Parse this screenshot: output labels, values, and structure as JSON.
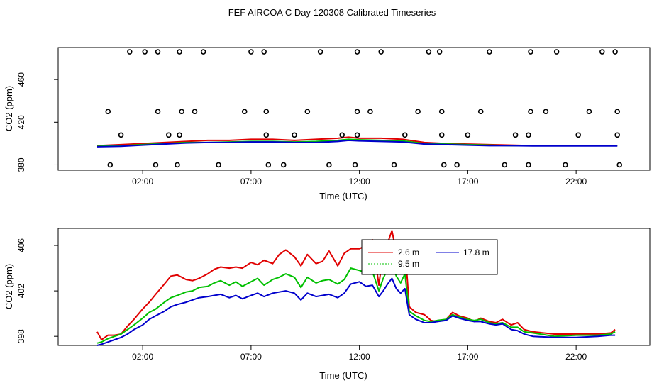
{
  "page": {
    "title": "FEF AIRCOA C  Day 120308  Calibrated Timeseries"
  },
  "colors": {
    "red": "#e00000",
    "green": "#00c000",
    "blue": "#0000cc",
    "axis": "#000000"
  },
  "chart_data": [
    {
      "type": "line+scatter",
      "xlabel": "Time (UTC)",
      "ylabel": "CO2 (ppm)",
      "xlim": [
        -1.9,
        25.4
      ],
      "ylim": [
        375,
        490
      ],
      "xticks": [
        2,
        7,
        12,
        17,
        22
      ],
      "xtick_labels": [
        "02:00",
        "07:00",
        "12:00",
        "17:00",
        "22:00"
      ],
      "yticks": [
        380,
        420,
        460
      ],
      "ytick_labels": [
        "380",
        "420",
        "460"
      ],
      "series": [
        {
          "name": "2.6 m",
          "color": "red",
          "x": [
            -0.1,
            1,
            2,
            3,
            4,
            5,
            6,
            7,
            8,
            9,
            10,
            11,
            11.5,
            12,
            13,
            14,
            15,
            16,
            17,
            18,
            19,
            20,
            21,
            22,
            23,
            23.9
          ],
          "y": [
            398,
            399,
            400,
            401,
            402,
            403,
            403,
            404,
            404,
            403,
            404,
            405,
            406,
            405,
            405,
            404,
            401,
            400,
            399.5,
            399,
            398.5,
            398,
            398,
            398,
            398,
            398
          ]
        },
        {
          "name": "9.5 m",
          "color": "green",
          "x": [
            -0.1,
            1,
            2,
            3,
            4,
            5,
            6,
            7,
            8,
            9,
            10,
            11,
            11.5,
            12,
            13,
            14,
            15,
            16,
            17,
            18,
            19,
            20,
            21,
            22,
            23,
            23.9
          ],
          "y": [
            397.5,
            398,
            399,
            400,
            401,
            401,
            401.5,
            402,
            402,
            401.5,
            402,
            403,
            404,
            403.5,
            403,
            402.5,
            400,
            399.5,
            399,
            398.5,
            398,
            398,
            398,
            398,
            398,
            398
          ]
        },
        {
          "name": "17.8 m",
          "color": "blue",
          "x": [
            -0.1,
            1,
            2,
            3,
            4,
            5,
            6,
            7,
            8,
            9,
            10,
            11,
            11.5,
            12,
            13,
            14,
            15,
            16,
            17,
            18,
            19,
            20,
            21,
            22,
            23,
            23.9
          ],
          "y": [
            397,
            397.5,
            398.5,
            399.5,
            400.5,
            401,
            401,
            401.5,
            401.5,
            401,
            401,
            402,
            403,
            402.5,
            402,
            401.5,
            399.5,
            399,
            398.5,
            398,
            398,
            397.8,
            397.8,
            397.8,
            397.8,
            397.8
          ]
        }
      ],
      "points": {
        "x": [
          1.4,
          2.1,
          2.7,
          3.7,
          4.8,
          7,
          7.6,
          10.2,
          11.9,
          13,
          15.2,
          15.7,
          18,
          19.9,
          21.1,
          23.2,
          23.8,
          1.0,
          3.2,
          3.7,
          7.7,
          9.0,
          11.2,
          11.9,
          14.1,
          15.8,
          17.0,
          19.2,
          19.8,
          22.1,
          23.9,
          0.4,
          2.7,
          3.8,
          4.4,
          6.7,
          7.7,
          9.6,
          11.9,
          12.5,
          14.7,
          15.8,
          17.6,
          19.9,
          20.6,
          22.6,
          23.9,
          0.5,
          2.6,
          3.6,
          5.5,
          7.8,
          8.5,
          10.6,
          11.8,
          13.6,
          15.9,
          16.5,
          18.7,
          19.8,
          21.5,
          24.0
        ],
        "y": [
          486,
          486,
          486,
          486,
          486,
          486,
          486,
          486,
          486,
          486,
          486,
          486,
          486,
          486,
          486,
          486,
          486,
          408,
          408,
          408,
          408,
          408,
          408,
          408,
          408,
          408,
          408,
          408,
          408,
          408,
          408,
          430,
          430,
          430,
          430,
          430,
          430,
          430,
          430,
          430,
          430,
          430,
          430,
          430,
          430,
          430,
          430,
          380,
          380,
          380,
          380,
          380,
          380,
          380,
          380,
          380,
          380,
          380,
          380,
          380,
          380,
          380
        ]
      }
    },
    {
      "type": "line",
      "xlabel": "Time (UTC)",
      "ylabel": "CO2 (ppm)",
      "xlim": [
        -1.9,
        25.4
      ],
      "ylim": [
        397.2,
        407.5
      ],
      "xticks": [
        2,
        7,
        12,
        17,
        22
      ],
      "xtick_labels": [
        "02:00",
        "07:00",
        "12:00",
        "17:00",
        "22:00"
      ],
      "yticks": [
        398,
        402,
        406
      ],
      "ytick_labels": [
        "398",
        "402",
        "406"
      ],
      "legend": {
        "position": "top-center",
        "entries": [
          "2.6 m",
          "9.5 m",
          "17.8 m"
        ]
      },
      "series": [
        {
          "name": "2.6 m",
          "color": "red",
          "x": [
            -0.1,
            0.1,
            0.4,
            0.7,
            1,
            1.3,
            1.6,
            2,
            2.3,
            2.6,
            3,
            3.3,
            3.6,
            4,
            4.3,
            4.6,
            5,
            5.3,
            5.6,
            6,
            6.3,
            6.6,
            7,
            7.3,
            7.6,
            8,
            8.3,
            8.6,
            9,
            9.3,
            9.6,
            10,
            10.3,
            10.6,
            11,
            11.3,
            11.6,
            12,
            12.3,
            12.6,
            12.9,
            13.1,
            13.3,
            13.5,
            13.7,
            13.9,
            14.1,
            14.3,
            14.6,
            15,
            15.3,
            15.6,
            16,
            16.3,
            16.6,
            17,
            17.3,
            17.6,
            18,
            18.3,
            18.6,
            19,
            19.3,
            19.6,
            20,
            21,
            22,
            23,
            23.6,
            23.8
          ],
          "y": [
            398.4,
            397.7,
            398.1,
            398.1,
            398.2,
            398.9,
            399.5,
            400.4,
            401,
            401.7,
            402.6,
            403.3,
            403.4,
            403,
            402.9,
            403.1,
            403.5,
            403.9,
            404.1,
            404,
            404.1,
            404,
            404.5,
            404.3,
            404.7,
            404.4,
            405.2,
            405.6,
            405,
            404.2,
            405.2,
            404.4,
            404.6,
            405.5,
            404.2,
            405.3,
            405.7,
            405.7,
            406,
            406.5,
            402.5,
            405.5,
            406.2,
            407.3,
            405.4,
            405,
            406,
            400.6,
            400.1,
            399.9,
            399.4,
            399.3,
            399.5,
            400.1,
            399.8,
            399.6,
            399.3,
            399.6,
            399.3,
            399.2,
            399.5,
            399,
            399.2,
            398.6,
            398.4,
            398.2,
            398.2,
            398.2,
            398.3,
            398.6
          ]
        },
        {
          "name": "9.5 m",
          "color": "green",
          "x": [
            -0.1,
            0.1,
            0.4,
            0.7,
            1,
            1.3,
            1.6,
            2,
            2.3,
            2.6,
            3,
            3.3,
            3.6,
            4,
            4.3,
            4.6,
            5,
            5.3,
            5.6,
            6,
            6.3,
            6.6,
            7,
            7.3,
            7.6,
            8,
            8.3,
            8.6,
            9,
            9.3,
            9.6,
            10,
            10.3,
            10.6,
            11,
            11.3,
            11.6,
            12,
            12.3,
            12.6,
            12.9,
            13.1,
            13.3,
            13.5,
            13.7,
            13.9,
            14.1,
            14.3,
            14.6,
            15,
            15.3,
            15.6,
            16,
            16.3,
            16.6,
            17,
            17.3,
            17.6,
            18,
            18.3,
            18.6,
            19,
            19.3,
            19.6,
            20,
            21,
            22,
            23,
            23.6,
            23.8
          ],
          "y": [
            397.4,
            397.5,
            397.8,
            398,
            398.2,
            398.6,
            399,
            399.6,
            400.1,
            400.4,
            401,
            401.4,
            401.6,
            401.9,
            402,
            402.3,
            402.4,
            402.7,
            402.9,
            402.5,
            402.8,
            402.4,
            402.8,
            403.1,
            402.5,
            403,
            403.2,
            403.5,
            403.2,
            402.3,
            403.2,
            402.7,
            402.9,
            403,
            402.6,
            403,
            404,
            403.8,
            403.6,
            403.7,
            402,
            403.1,
            403.9,
            404.4,
            403.3,
            402.7,
            403.5,
            400.2,
            399.8,
            399.4,
            399.3,
            399.4,
            399.5,
            399.9,
            399.7,
            399.5,
            399.4,
            399.5,
            399.2,
            399.1,
            399.2,
            398.8,
            398.8,
            398.4,
            398.3,
            398,
            398.1,
            398.1,
            398.2,
            398.4
          ]
        },
        {
          "name": "17.8 m",
          "color": "blue",
          "x": [
            -0.1,
            0.1,
            0.4,
            0.7,
            1,
            1.3,
            1.6,
            2,
            2.3,
            2.6,
            3,
            3.3,
            3.6,
            4,
            4.3,
            4.6,
            5,
            5.3,
            5.6,
            6,
            6.3,
            6.6,
            7,
            7.3,
            7.6,
            8,
            8.3,
            8.6,
            9,
            9.3,
            9.6,
            10,
            10.3,
            10.6,
            11,
            11.3,
            11.6,
            12,
            12.3,
            12.6,
            12.9,
            13.1,
            13.3,
            13.5,
            13.7,
            13.9,
            14.1,
            14.3,
            14.6,
            15,
            15.3,
            15.6,
            16,
            16.3,
            16.6,
            17,
            17.3,
            17.6,
            18,
            18.3,
            18.6,
            19,
            19.3,
            19.6,
            20,
            21,
            22,
            23,
            23.6,
            23.8
          ],
          "y": [
            397.2,
            397.3,
            397.5,
            397.7,
            397.9,
            398.2,
            398.6,
            399,
            399.5,
            399.8,
            400.2,
            400.6,
            400.8,
            401,
            401.2,
            401.4,
            401.5,
            401.6,
            401.7,
            401.4,
            401.6,
            401.3,
            401.6,
            401.8,
            401.5,
            401.8,
            401.9,
            402,
            401.8,
            401.2,
            401.8,
            401.5,
            401.6,
            401.7,
            401.4,
            401.8,
            402.6,
            402.8,
            402.4,
            402.5,
            401.5,
            402,
            402.6,
            403.1,
            402.2,
            401.8,
            402.2,
            399.9,
            399.5,
            399.2,
            399.2,
            399.3,
            399.4,
            399.8,
            399.6,
            399.4,
            399.3,
            399.3,
            399.1,
            399,
            399.1,
            398.6,
            398.5,
            398.2,
            398,
            397.9,
            397.9,
            398,
            398.1,
            398.1
          ]
        }
      ]
    }
  ]
}
